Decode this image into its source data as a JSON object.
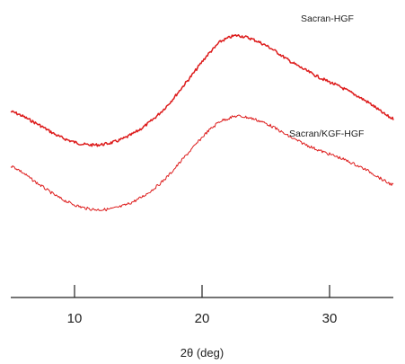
{
  "chart_data": {
    "type": "line",
    "title": "",
    "xlabel": "2θ (deg)",
    "ylabel": "",
    "xlim": [
      5,
      35
    ],
    "xticks": [
      10,
      20,
      30
    ],
    "yaxis_visible": false,
    "grid": false,
    "legend": "none",
    "series_color": "#dd1c1c",
    "series": [
      {
        "name": "Sacran-HGF",
        "x": [
          5,
          7,
          9,
          11,
          13,
          15,
          17,
          19,
          21,
          22,
          23,
          25,
          27,
          29,
          31,
          33,
          35
        ],
        "y": [
          0.68,
          0.63,
          0.57,
          0.54,
          0.55,
          0.6,
          0.69,
          0.82,
          0.95,
          0.99,
          1.0,
          0.96,
          0.89,
          0.83,
          0.78,
          0.72,
          0.65
        ]
      },
      {
        "name": "Sacran/KGF-HGF",
        "x": [
          5,
          7,
          9,
          11,
          13,
          15,
          17,
          19,
          21,
          22,
          23,
          25,
          27,
          29,
          31,
          33,
          35
        ],
        "y": [
          0.45,
          0.38,
          0.31,
          0.27,
          0.27,
          0.31,
          0.39,
          0.51,
          0.62,
          0.65,
          0.66,
          0.63,
          0.57,
          0.52,
          0.48,
          0.43,
          0.37
        ]
      }
    ]
  }
}
